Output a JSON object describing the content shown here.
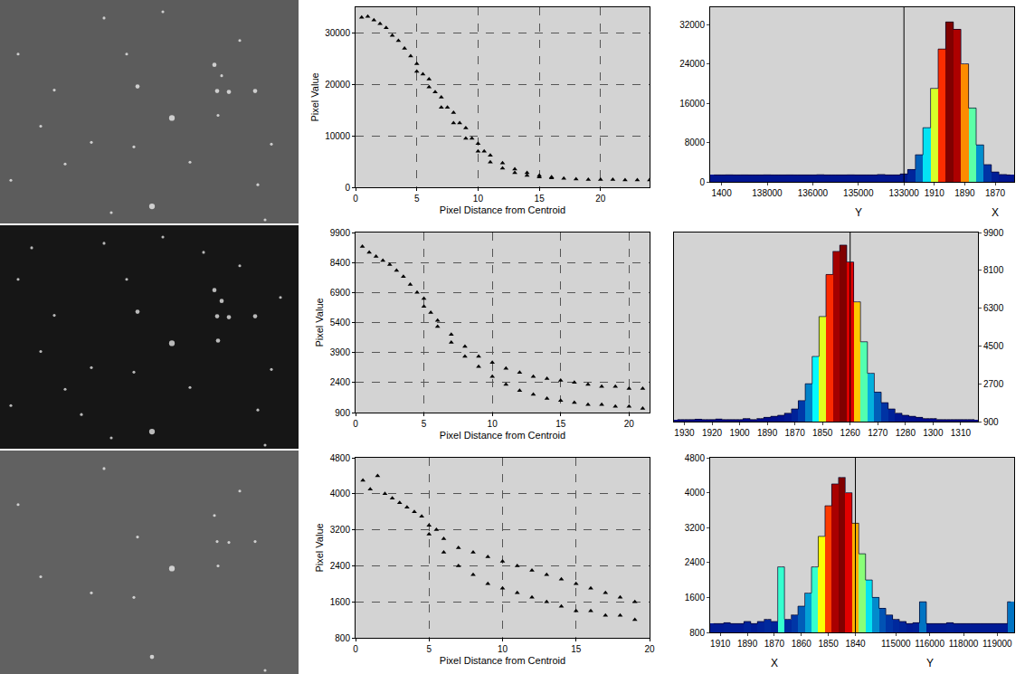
{
  "chart_data": [
    {
      "type": "image",
      "tick_labels": false,
      "color": "#ffffff",
      "xlim": [
        0,
        330
      ],
      "ylim": [
        248,
        0
      ],
      "x": [
        190,
        168,
        152,
        240,
        253,
        282,
        237,
        245,
        115,
        45,
        72,
        101,
        148,
        241,
        123,
        293,
        180,
        265,
        20,
        60,
        210,
        300,
        140,
        12,
        285
      ],
      "y": [
        131,
        229,
        96,
        101,
        102,
        101,
        72,
        84,
        20,
        140,
        182,
        158,
        163,
        128,
        236,
        244,
        13,
        45,
        60,
        100,
        180,
        160,
        60,
        200,
        205
      ],
      "size": [
        3,
        3,
        2,
        2,
        2,
        2,
        2,
        1,
        1,
        1,
        1,
        1,
        1,
        1,
        1,
        1,
        1,
        1,
        1,
        1,
        1,
        1,
        1,
        1,
        1
      ]
    },
    {
      "type": "scatter",
      "x_label": "Pixel Distance from Centroid",
      "y_label": "Pixel Value",
      "marker": "triangle",
      "color": "#000000",
      "grid": true,
      "xlim": [
        0,
        24
      ],
      "ylim": [
        0,
        35000
      ],
      "xticks": [
        0,
        5,
        10,
        15,
        20
      ],
      "yticks": [
        0,
        10000,
        20000,
        30000
      ],
      "x": [
        0.5,
        1,
        1.5,
        2,
        2.5,
        3,
        3.5,
        4,
        4.5,
        5,
        5,
        5.5,
        6,
        6,
        6.5,
        7,
        7,
        7.5,
        8,
        8,
        8.5,
        9,
        9,
        9.5,
        10,
        10,
        10.5,
        11,
        11,
        12,
        12,
        13,
        13,
        14,
        14,
        15,
        15,
        16,
        16,
        17,
        18,
        19,
        20,
        21,
        22,
        23,
        24
      ],
      "values": [
        33000,
        33200,
        32500,
        31800,
        31000,
        29500,
        28500,
        27000,
        25500,
        24000,
        22500,
        22000,
        21000,
        19500,
        18500,
        17500,
        15500,
        15500,
        14500,
        12500,
        12500,
        11500,
        9500,
        9500,
        8500,
        7000,
        7000,
        6200,
        4900,
        4700,
        3700,
        3500,
        2800,
        2800,
        2300,
        2300,
        2000,
        2000,
        1800,
        1700,
        1600,
        1500,
        1500,
        1500,
        1400,
        1400,
        1400
      ]
    },
    {
      "type": "bar",
      "color": "Jet",
      "grid": false,
      "ylim": [
        0,
        35500
      ],
      "yticks": [
        0,
        8000,
        16000,
        24000,
        32000
      ],
      "categories": [
        null,
        "1400",
        null,
        null,
        null,
        null,
        null,
        "138000",
        null,
        null,
        null,
        null,
        null,
        "136000",
        null,
        null,
        null,
        null,
        null,
        "135000",
        null,
        null,
        null,
        null,
        null,
        "133000",
        null,
        null,
        null,
        "1910",
        null,
        null,
        null,
        "1890",
        null,
        null,
        null,
        "1870",
        null,
        null
      ],
      "values": [
        1400,
        1400,
        1420,
        1400,
        1410,
        1400,
        1400,
        1420,
        1400,
        1400,
        1410,
        1400,
        1400,
        1400,
        1450,
        1400,
        1400,
        1400,
        1420,
        1400,
        1400,
        1400,
        1500,
        1400,
        1400,
        1600,
        2500,
        5500,
        11000,
        19000,
        27000,
        32500,
        31000,
        24000,
        15000,
        7500,
        3500,
        2000,
        1500,
        1400
      ],
      "vline": "133000",
      "annotations": [
        {
          "text": "Y",
          "at": "135000"
        },
        {
          "text": "X",
          "at": "1870"
        }
      ]
    },
    {
      "type": "image",
      "tick_labels": false,
      "color": "#ffffff",
      "xlim": [
        0,
        330
      ],
      "ylim": [
        248,
        0
      ],
      "x": [
        190,
        168,
        152,
        240,
        253,
        282,
        237,
        245,
        115,
        45,
        72,
        101,
        148,
        241,
        123,
        293,
        180,
        265,
        20,
        60,
        210,
        300,
        140,
        12,
        285,
        90,
        225,
        310,
        35
      ],
      "y": [
        131,
        229,
        96,
        101,
        102,
        101,
        72,
        84,
        20,
        140,
        182,
        158,
        163,
        128,
        236,
        244,
        13,
        45,
        60,
        100,
        180,
        160,
        60,
        200,
        205,
        210,
        30,
        80,
        25
      ],
      "size": [
        3,
        3,
        2,
        2,
        2,
        2,
        2,
        2,
        1,
        1,
        1,
        1,
        1,
        2,
        1,
        1,
        1,
        1,
        1,
        1,
        1,
        1,
        1,
        1,
        1,
        1,
        1,
        1,
        1
      ]
    },
    {
      "type": "scatter",
      "x_label": "Pixel Distance from Centroid",
      "y_label": "Pixel Value",
      "marker": "triangle",
      "color": "#000000",
      "grid": true,
      "xlim": [
        0,
        21.5
      ],
      "ylim": [
        900,
        9900
      ],
      "xticks": [
        0,
        5,
        10,
        15,
        20
      ],
      "yticks": [
        900,
        2400,
        3900,
        5400,
        6900,
        8400,
        9900
      ],
      "x": [
        0.5,
        1,
        1.5,
        2,
        2.5,
        3,
        3.5,
        4,
        4.5,
        5,
        5,
        5.5,
        6,
        6,
        7,
        7,
        8,
        8,
        9,
        9,
        10,
        10,
        11,
        11,
        12,
        12,
        13,
        13,
        14,
        14,
        15,
        15,
        16,
        16,
        17,
        17,
        18,
        18,
        19,
        19,
        20,
        20,
        21,
        21
      ],
      "values": [
        9200,
        8900,
        8700,
        8500,
        8300,
        8000,
        7700,
        7300,
        6900,
        6600,
        6200,
        5900,
        5500,
        5200,
        4800,
        4400,
        4200,
        3700,
        3700,
        3200,
        3400,
        2700,
        3100,
        2300,
        2900,
        2000,
        2700,
        1800,
        2600,
        1600,
        2500,
        1500,
        2400,
        1400,
        2300,
        1300,
        2200,
        1300,
        2200,
        1200,
        2100,
        1200,
        2100,
        1100
      ]
    },
    {
      "type": "bar",
      "color": "Jet",
      "grid": false,
      "ylim": [
        900,
        9900
      ],
      "yticks": [
        900,
        2700,
        4500,
        6300,
        8100,
        9900
      ],
      "categories": [
        null,
        "1930",
        null,
        null,
        null,
        "1920",
        null,
        null,
        null,
        "1900",
        null,
        null,
        null,
        "1890",
        null,
        null,
        null,
        "1870",
        null,
        null,
        null,
        "1850",
        null,
        null,
        null,
        "1260",
        null,
        null,
        null,
        "1270",
        null,
        null,
        null,
        "1280",
        null,
        null,
        null,
        "1300",
        null,
        null,
        null,
        "1310",
        null,
        null
      ],
      "values": [
        1000,
        1000,
        1000,
        1010,
        1000,
        1000,
        1020,
        1000,
        1000,
        1000,
        1050,
        1000,
        1050,
        1100,
        1150,
        1200,
        1300,
        1500,
        1900,
        2700,
        4000,
        5900,
        7900,
        9000,
        9300,
        8500,
        6600,
        4700,
        3200,
        2300,
        1800,
        1500,
        1300,
        1200,
        1150,
        1100,
        1050,
        1050,
        1000,
        1000,
        1000,
        1000,
        1000,
        1000
      ],
      "vline": "1260"
    },
    {
      "type": "image",
      "tick_labels": false,
      "color": "#ffffff",
      "xlim": [
        0,
        330
      ],
      "ylim": [
        248,
        0
      ],
      "x": [
        190,
        168,
        152,
        240,
        253,
        282,
        237,
        115,
        45,
        101,
        148,
        241,
        293,
        265,
        20
      ],
      "y": [
        131,
        229,
        96,
        101,
        102,
        101,
        72,
        20,
        140,
        158,
        163,
        128,
        244,
        45,
        60
      ],
      "size": [
        3,
        2,
        1,
        1,
        1,
        1,
        1,
        1,
        1,
        1,
        1,
        1,
        1,
        1,
        1
      ]
    },
    {
      "type": "scatter",
      "x_label": "Pixel Distance from Centroid",
      "y_label": "Pixel Value",
      "marker": "triangle",
      "color": "#000000",
      "grid": true,
      "xlim": [
        0,
        20
      ],
      "ylim": [
        800,
        4800
      ],
      "xticks": [
        0,
        5,
        10,
        15,
        20
      ],
      "yticks": [
        800,
        1600,
        2400,
        3200,
        4000,
        4800
      ],
      "x": [
        0.5,
        1,
        1.5,
        2,
        2.5,
        3,
        3.5,
        4,
        4.5,
        5,
        5,
        5.5,
        6,
        6,
        7,
        7,
        8,
        8,
        9,
        9,
        10,
        10,
        11,
        11,
        12,
        12,
        13,
        13,
        14,
        14,
        15,
        15,
        16,
        16,
        17,
        17,
        18,
        18,
        19,
        19
      ],
      "values": [
        4300,
        4100,
        4400,
        4000,
        3900,
        3800,
        3700,
        3600,
        3500,
        3300,
        3100,
        3200,
        3000,
        2700,
        2800,
        2400,
        2700,
        2200,
        2600,
        2000,
        2500,
        1900,
        2400,
        1800,
        2300,
        1700,
        2200,
        1600,
        2100,
        1500,
        2000,
        1400,
        1900,
        1400,
        1800,
        1300,
        1700,
        1300,
        1600,
        1200
      ]
    },
    {
      "type": "bar",
      "color": "Jet",
      "grid": false,
      "ylim": [
        800,
        4800
      ],
      "yticks": [
        800,
        1600,
        2400,
        3200,
        4000,
        4800
      ],
      "categories": [
        null,
        "1910",
        null,
        null,
        null,
        "1890",
        null,
        null,
        null,
        "1870",
        null,
        null,
        null,
        "1860",
        null,
        null,
        null,
        "1850",
        null,
        null,
        null,
        "1840",
        null,
        null,
        null,
        null,
        null,
        "115000",
        null,
        null,
        null,
        null,
        "116000",
        null,
        null,
        null,
        null,
        "118000",
        null,
        null,
        null,
        null,
        "119000",
        null,
        null
      ],
      "values": [
        1000,
        1000,
        1020,
        1000,
        1000,
        1050,
        1000,
        1050,
        1100,
        1050,
        2300,
        1100,
        1200,
        1400,
        1700,
        2300,
        3000,
        3700,
        4200,
        4350,
        4000,
        3300,
        2600,
        2000,
        1600,
        1350,
        1200,
        1100,
        1050,
        1000,
        1020,
        1500,
        1000,
        1000,
        1000,
        1020,
        1000,
        1000,
        1000,
        1000,
        1000,
        1000,
        1000,
        1000,
        1500
      ],
      "vline": "1840",
      "annotations": [
        {
          "text": "X",
          "at": "1870"
        },
        {
          "text": "Y",
          "at": "116000"
        }
      ]
    }
  ]
}
